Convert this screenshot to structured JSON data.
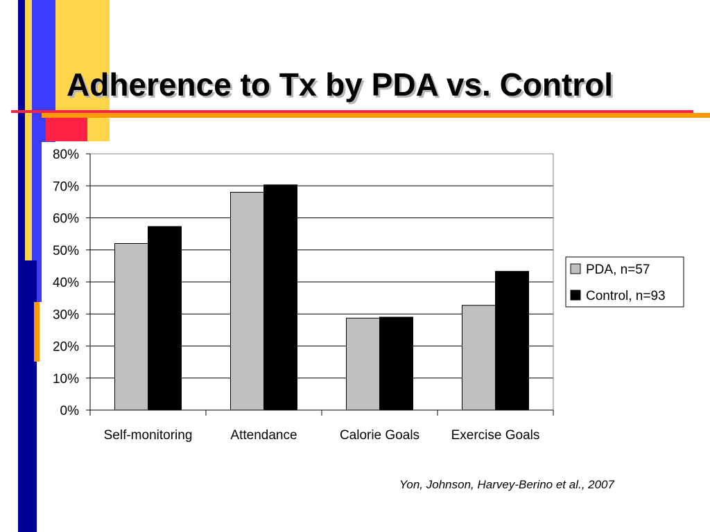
{
  "slide": {
    "title": "Adherence to Tx by PDA vs. Control",
    "citation": "Yon, Johnson, Harvey-Berino et al., 2007"
  },
  "colors": {
    "deco_yellow": "#ffd54a",
    "deco_blue": "#3c3cff",
    "deco_navy": "#000099",
    "deco_red": "#ff2244",
    "deco_orange": "#ff9900",
    "bar_pda": "#c0c0c0",
    "bar_control": "#000000"
  },
  "chart_data": {
    "type": "bar",
    "categories": [
      "Self-monitoring",
      "Attendance",
      "Calorie Goals",
      "Exercise Goals"
    ],
    "series": [
      {
        "name": "PDA, n=57",
        "values": [
          52,
          68,
          28.7,
          32.7
        ],
        "color": "#c0c0c0"
      },
      {
        "name": "Control, n=93",
        "values": [
          57.3,
          70.3,
          29,
          43.3
        ],
        "color": "#000000"
      }
    ],
    "y_ticks": [
      "0%",
      "10%",
      "20%",
      "30%",
      "40%",
      "50%",
      "60%",
      "70%",
      "80%"
    ],
    "ylim": [
      0,
      80
    ],
    "grid": true,
    "legend_position": "right"
  }
}
